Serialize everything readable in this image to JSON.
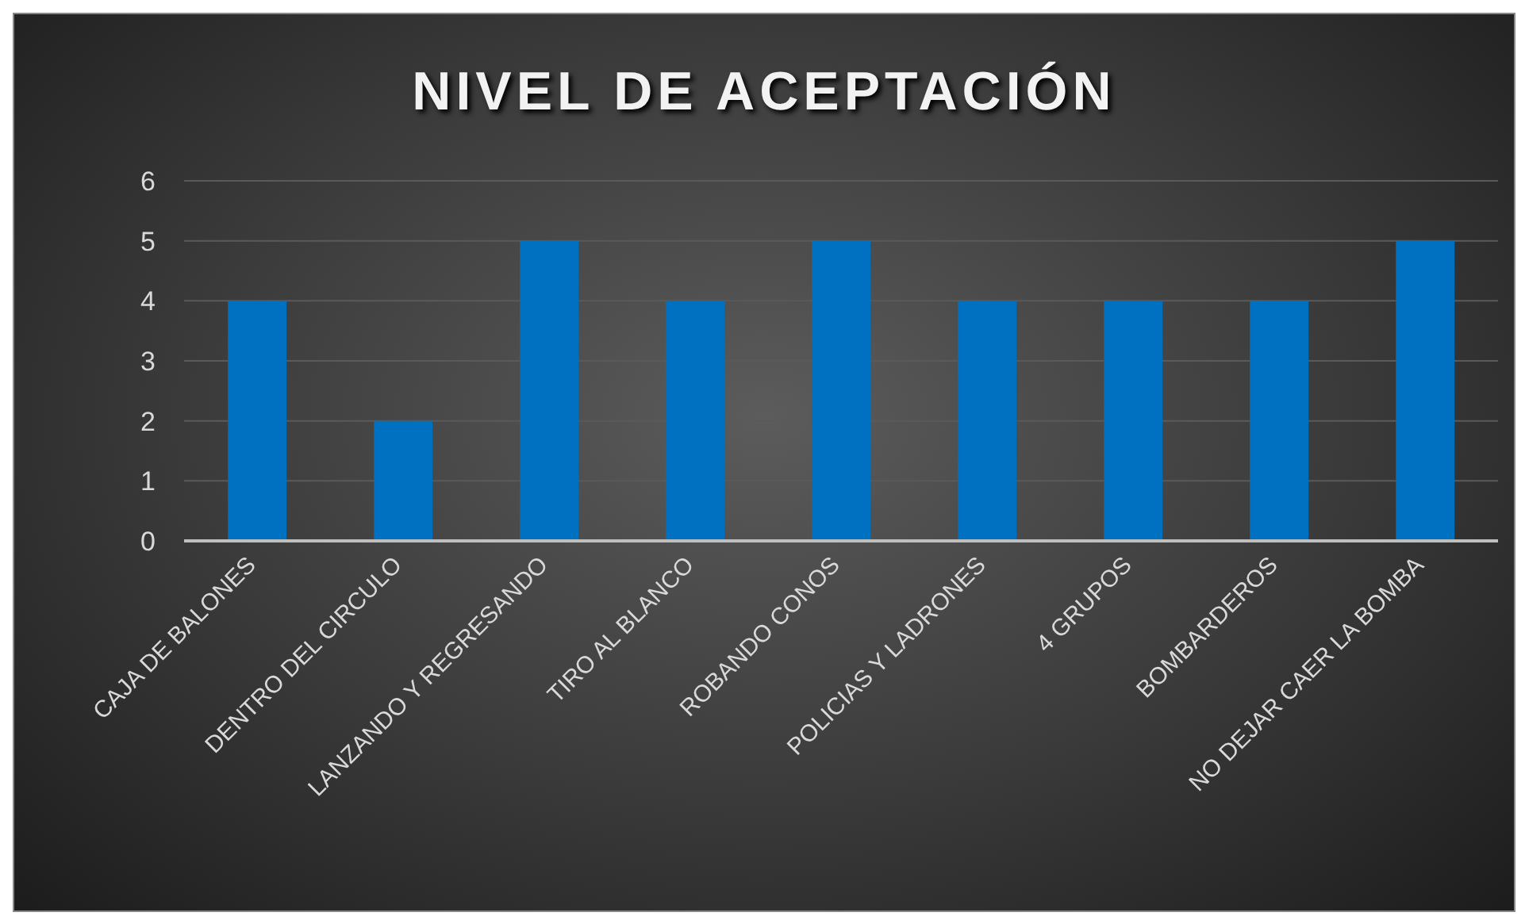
{
  "chart_data": {
    "type": "bar",
    "title": "NIVEL DE ACEPTACIÓN",
    "categories": [
      "CAJA DE BALONES",
      "DENTRO DEL CIRCULO",
      "LANZANDO Y REGRESANDO",
      "TIRO AL BLANCO",
      "ROBANDO CONOS",
      "POLICIAS Y LADRONES",
      "4 GRUPOS",
      "BOMBARDEROS",
      "NO DEJAR CAER LA BOMBA"
    ],
    "values": [
      4,
      2,
      5,
      4,
      5,
      4,
      4,
      4,
      5
    ],
    "color": "#0070c0",
    "ylim": [
      0,
      6
    ],
    "yticks": [
      0,
      1,
      2,
      3,
      4,
      5,
      6
    ],
    "grid": "y",
    "legend": false
  }
}
